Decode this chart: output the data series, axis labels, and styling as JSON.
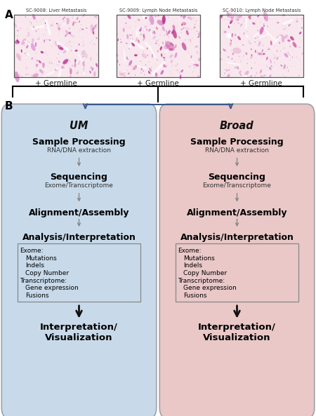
{
  "fig_width": 4.5,
  "fig_height": 5.93,
  "panel_A_label": "A",
  "panel_B_label": "B",
  "img_titles": [
    "SC-9008: Liver Metastasis",
    "SC-9009: Lymph Node Metastasis",
    "SC-9010: Lymph Node Metastasis"
  ],
  "germline_text": "+ Germline",
  "um_title": "UM",
  "broad_title": "Broad",
  "um_bg": "#C8DAEA",
  "broad_bg": "#EAC8C8",
  "box_edge": "#A0A0A8",
  "inner_box_edge": "#888888",
  "arrow_blue": "#3A5A8C",
  "arrow_gray": "#888888",
  "arrow_black": "#111111",
  "steps": [
    {
      "main": "Sample Processing",
      "sub": "RNA/DNA extraction"
    },
    {
      "main": "Sequencing",
      "sub": "Exome/Transcriptome"
    },
    {
      "main": "Alignment/Assembly",
      "sub": ""
    },
    {
      "main": "Analysis/Interpretation",
      "sub": ""
    }
  ],
  "inner_lines": [
    {
      "text": "Exome:",
      "indent": 0,
      "bold": true
    },
    {
      "text": "Mutations",
      "indent": 1,
      "bold": false
    },
    {
      "text": "Indels",
      "indent": 1,
      "bold": false
    },
    {
      "text": "Copy Number",
      "indent": 1,
      "bold": false
    },
    {
      "text": "Transcriptome:",
      "indent": 0,
      "bold": true
    },
    {
      "text": "Gene expression",
      "indent": 1,
      "bold": false
    },
    {
      "text": "Fusions",
      "indent": 1,
      "bold": false
    }
  ],
  "final_text": "Interpretation/\nVisualization"
}
